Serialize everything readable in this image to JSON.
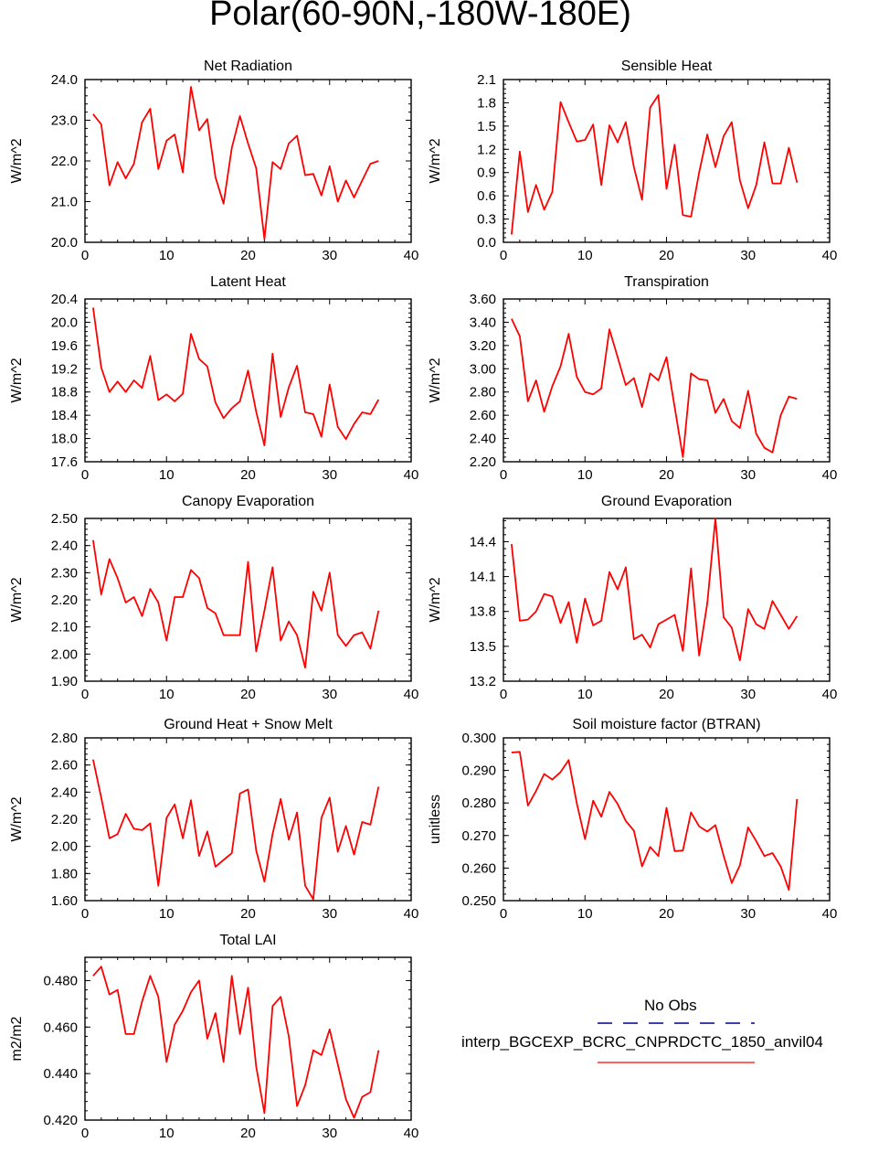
{
  "title": "Polar(60-90N,-180W-180E)",
  "colors": {
    "model_line": "#ff0000",
    "obs_line": "#00008b",
    "axis": "#000000"
  },
  "legend": {
    "obs_label": "No Obs",
    "model_label": "interp_BGCEXP_BCRC_CNPRDCTC_1850_anvil04"
  },
  "chart_data": [
    {
      "type": "line",
      "title": "Net Radiation",
      "ylabel": "W/m^2",
      "xlim": [
        0,
        40
      ],
      "ylim": [
        20.0,
        24.0
      ],
      "xticks": [
        0,
        10,
        20,
        30,
        40
      ],
      "yticks": [
        "20.0",
        "21.0",
        "22.0",
        "23.0",
        "24.0"
      ],
      "x": [
        1,
        2,
        3,
        4,
        5,
        6,
        7,
        8,
        9,
        10,
        11,
        12,
        13,
        14,
        15,
        16,
        17,
        18,
        19,
        20,
        21,
        22,
        23,
        24,
        25,
        26,
        27,
        28,
        29,
        30,
        31,
        32,
        33,
        34,
        35,
        36
      ],
      "series": [
        {
          "name": "interp_BGCEXP_BCRC_CNPRDCTC_1850_anvil04",
          "values": [
            23.15,
            22.9,
            21.4,
            21.97,
            21.57,
            21.93,
            22.95,
            23.28,
            21.8,
            22.5,
            22.65,
            21.72,
            23.82,
            22.75,
            23.03,
            21.6,
            20.95,
            22.32,
            23.1,
            22.43,
            21.82,
            20.08,
            21.97,
            21.8,
            22.43,
            22.62,
            21.65,
            21.68,
            21.15,
            21.87,
            21.0,
            21.52,
            21.1,
            21.52,
            21.93,
            22.0
          ]
        }
      ]
    },
    {
      "type": "line",
      "title": "Sensible Heat",
      "ylabel": "W/m^2",
      "xlim": [
        0,
        40
      ],
      "ylim": [
        0.0,
        2.1
      ],
      "xticks": [
        0,
        10,
        20,
        30,
        40
      ],
      "yticks": [
        "0.0",
        "0.3",
        "0.6",
        "0.9",
        "1.2",
        "1.5",
        "1.8",
        "2.1"
      ],
      "x": [
        1,
        2,
        3,
        4,
        5,
        6,
        7,
        8,
        9,
        10,
        11,
        12,
        13,
        14,
        15,
        16,
        17,
        18,
        19,
        20,
        21,
        22,
        23,
        24,
        25,
        26,
        27,
        28,
        29,
        30,
        31,
        32,
        33,
        34,
        35,
        36
      ],
      "series": [
        {
          "name": "interp_BGCEXP_BCRC_CNPRDCTC_1850_anvil04",
          "values": [
            0.1,
            1.17,
            0.39,
            0.74,
            0.42,
            0.65,
            1.81,
            1.55,
            1.3,
            1.32,
            1.52,
            0.74,
            1.51,
            1.29,
            1.55,
            0.97,
            0.55,
            1.74,
            1.9,
            0.69,
            1.26,
            0.35,
            0.33,
            0.9,
            1.39,
            0.97,
            1.37,
            1.55,
            0.8,
            0.44,
            0.74,
            1.29,
            0.76,
            0.76,
            1.22,
            0.77
          ]
        }
      ]
    },
    {
      "type": "line",
      "title": "Latent Heat",
      "ylabel": "W/m^2",
      "xlim": [
        0,
        40
      ],
      "ylim": [
        17.6,
        20.4
      ],
      "xticks": [
        0,
        10,
        20,
        30,
        40
      ],
      "yticks": [
        "17.6",
        "18.0",
        "18.4",
        "18.8",
        "19.2",
        "19.6",
        "20.0",
        "20.4"
      ],
      "x": [
        1,
        2,
        3,
        4,
        5,
        6,
        7,
        8,
        9,
        10,
        11,
        12,
        13,
        14,
        15,
        16,
        17,
        18,
        19,
        20,
        21,
        22,
        23,
        24,
        25,
        26,
        27,
        28,
        29,
        30,
        31,
        32,
        33,
        34,
        35,
        36
      ],
      "series": [
        {
          "name": "interp_BGCEXP_BCRC_CNPRDCTC_1850_anvil04",
          "values": [
            20.25,
            19.22,
            18.8,
            18.98,
            18.8,
            19.0,
            18.87,
            19.42,
            18.66,
            18.76,
            18.64,
            18.77,
            19.8,
            19.37,
            19.24,
            18.62,
            18.35,
            18.52,
            18.64,
            19.17,
            18.46,
            17.88,
            19.46,
            18.37,
            18.88,
            19.25,
            18.45,
            18.42,
            18.03,
            18.93,
            18.2,
            17.99,
            18.25,
            18.45,
            18.42,
            18.67
          ]
        }
      ]
    },
    {
      "type": "line",
      "title": "Transpiration",
      "ylabel": "W/m^2",
      "xlim": [
        0,
        40
      ],
      "ylim": [
        2.2,
        3.6
      ],
      "xticks": [
        0,
        10,
        20,
        30,
        40
      ],
      "yticks": [
        "2.20",
        "2.40",
        "2.60",
        "2.80",
        "3.00",
        "3.20",
        "3.40",
        "3.60"
      ],
      "x": [
        1,
        2,
        3,
        4,
        5,
        6,
        7,
        8,
        9,
        10,
        11,
        12,
        13,
        14,
        15,
        16,
        17,
        18,
        19,
        20,
        21,
        22,
        23,
        24,
        25,
        26,
        27,
        28,
        29,
        30,
        31,
        32,
        33,
        34,
        35,
        36
      ],
      "series": [
        {
          "name": "interp_BGCEXP_BCRC_CNPRDCTC_1850_anvil04",
          "values": [
            3.43,
            3.28,
            2.72,
            2.9,
            2.63,
            2.85,
            3.02,
            3.3,
            2.93,
            2.8,
            2.78,
            2.83,
            3.34,
            3.1,
            2.86,
            2.92,
            2.67,
            2.96,
            2.9,
            3.1,
            2.67,
            2.24,
            2.96,
            2.91,
            2.9,
            2.62,
            2.74,
            2.55,
            2.49,
            2.81,
            2.44,
            2.32,
            2.28,
            2.6,
            2.76,
            2.74
          ]
        }
      ]
    },
    {
      "type": "line",
      "title": "Canopy Evaporation",
      "ylabel": "W/m^2",
      "xlim": [
        0,
        40
      ],
      "ylim": [
        1.9,
        2.5
      ],
      "xticks": [
        0,
        10,
        20,
        30,
        40
      ],
      "yticks": [
        "1.90",
        "2.00",
        "2.10",
        "2.20",
        "2.30",
        "2.40",
        "2.50"
      ],
      "x": [
        1,
        2,
        3,
        4,
        5,
        6,
        7,
        8,
        9,
        10,
        11,
        12,
        13,
        14,
        15,
        16,
        17,
        18,
        19,
        20,
        21,
        22,
        23,
        24,
        25,
        26,
        27,
        28,
        29,
        30,
        31,
        32,
        33,
        34,
        35,
        36
      ],
      "series": [
        {
          "name": "interp_BGCEXP_BCRC_CNPRDCTC_1850_anvil04",
          "values": [
            2.42,
            2.22,
            2.35,
            2.28,
            2.19,
            2.21,
            2.14,
            2.24,
            2.19,
            2.05,
            2.21,
            2.21,
            2.31,
            2.28,
            2.17,
            2.15,
            2.07,
            2.07,
            2.07,
            2.34,
            2.01,
            2.16,
            2.32,
            2.05,
            2.12,
            2.07,
            1.95,
            2.23,
            2.16,
            2.3,
            2.07,
            2.03,
            2.07,
            2.08,
            2.02,
            2.16
          ]
        }
      ]
    },
    {
      "type": "line",
      "title": "Ground Evaporation",
      "ylabel": "W/m^2",
      "xlim": [
        0,
        40
      ],
      "ylim": [
        13.2,
        14.6
      ],
      "xticks": [
        0,
        10,
        20,
        30,
        40
      ],
      "yticks": [
        "13.2",
        "13.5",
        "13.8",
        "14.1",
        "14.4"
      ],
      "x": [
        1,
        2,
        3,
        4,
        5,
        6,
        7,
        8,
        9,
        10,
        11,
        12,
        13,
        14,
        15,
        16,
        17,
        18,
        19,
        20,
        21,
        22,
        23,
        24,
        25,
        26,
        27,
        28,
        29,
        30,
        31,
        32,
        33,
        34,
        35,
        36
      ],
      "series": [
        {
          "name": "interp_BGCEXP_BCRC_CNPRDCTC_1850_anvil04",
          "values": [
            14.38,
            13.72,
            13.73,
            13.8,
            13.95,
            13.93,
            13.7,
            13.88,
            13.53,
            13.91,
            13.68,
            13.72,
            14.14,
            13.99,
            14.18,
            13.56,
            13.6,
            13.49,
            13.69,
            13.73,
            13.77,
            13.46,
            14.17,
            13.42,
            13.87,
            14.6,
            13.75,
            13.66,
            13.38,
            13.82,
            13.69,
            13.65,
            13.89,
            13.77,
            13.65,
            13.76
          ]
        }
      ]
    },
    {
      "type": "line",
      "title": "Ground Heat + Snow Melt",
      "ylabel": "W/m^2",
      "xlim": [
        0,
        40
      ],
      "ylim": [
        1.6,
        2.8
      ],
      "xticks": [
        0,
        10,
        20,
        30,
        40
      ],
      "yticks": [
        "1.60",
        "1.80",
        "2.00",
        "2.20",
        "2.40",
        "2.60",
        "2.80"
      ],
      "x": [
        1,
        2,
        3,
        4,
        5,
        6,
        7,
        8,
        9,
        10,
        11,
        12,
        13,
        14,
        15,
        16,
        17,
        18,
        19,
        20,
        21,
        22,
        23,
        24,
        25,
        26,
        27,
        28,
        29,
        30,
        31,
        32,
        33,
        34,
        35,
        36
      ],
      "series": [
        {
          "name": "interp_BGCEXP_BCRC_CNPRDCTC_1850_anvil04",
          "values": [
            2.64,
            2.36,
            2.06,
            2.09,
            2.24,
            2.13,
            2.12,
            2.17,
            1.71,
            2.21,
            2.31,
            2.06,
            2.34,
            1.93,
            2.11,
            1.85,
            1.9,
            1.95,
            2.39,
            2.42,
            1.97,
            1.74,
            2.09,
            2.35,
            2.05,
            2.25,
            1.71,
            1.61,
            2.21,
            2.36,
            1.96,
            2.15,
            1.94,
            2.18,
            2.16,
            2.44
          ]
        }
      ]
    },
    {
      "type": "line",
      "title": "Soil moisture factor (BTRAN)",
      "ylabel": "unitless",
      "xlim": [
        0,
        40
      ],
      "ylim": [
        0.25,
        0.3
      ],
      "xticks": [
        0,
        10,
        20,
        30,
        40
      ],
      "yticks": [
        "0.250",
        "0.260",
        "0.270",
        "0.280",
        "0.290",
        "0.300"
      ],
      "x": [
        1,
        2,
        3,
        4,
        5,
        6,
        7,
        8,
        9,
        10,
        11,
        12,
        13,
        14,
        15,
        16,
        17,
        18,
        19,
        20,
        21,
        22,
        23,
        24,
        25,
        26,
        27,
        28,
        29,
        30,
        31,
        32,
        33,
        34,
        35,
        36
      ],
      "series": [
        {
          "name": "interp_BGCEXP_BCRC_CNPRDCTC_1850_anvil04",
          "values": [
            0.2955,
            0.2957,
            0.2792,
            0.2837,
            0.2889,
            0.2872,
            0.2895,
            0.2932,
            0.2799,
            0.2689,
            0.2807,
            0.2758,
            0.2834,
            0.2797,
            0.2745,
            0.2715,
            0.2605,
            0.2665,
            0.2637,
            0.2785,
            0.2652,
            0.2654,
            0.2771,
            0.2728,
            0.2712,
            0.2732,
            0.2638,
            0.2554,
            0.2609,
            0.2725,
            0.2683,
            0.2637,
            0.2646,
            0.2605,
            0.2533,
            0.2812
          ]
        }
      ]
    },
    {
      "type": "line",
      "title": "Total LAI",
      "ylabel": "m2/m2",
      "xlim": [
        0,
        40
      ],
      "ylim": [
        0.42,
        0.49
      ],
      "xticks": [
        0,
        10,
        20,
        30,
        40
      ],
      "yticks": [
        "0.420",
        "0.440",
        "0.460",
        "0.480"
      ],
      "x": [
        1,
        2,
        3,
        4,
        5,
        6,
        7,
        8,
        9,
        10,
        11,
        12,
        13,
        14,
        15,
        16,
        17,
        18,
        19,
        20,
        21,
        22,
        23,
        24,
        25,
        26,
        27,
        28,
        29,
        30,
        31,
        32,
        33,
        34,
        35,
        36
      ],
      "series": [
        {
          "name": "interp_BGCEXP_BCRC_CNPRDCTC_1850_anvil04",
          "values": [
            0.482,
            0.486,
            0.474,
            0.476,
            0.457,
            0.457,
            0.471,
            0.482,
            0.473,
            0.445,
            0.461,
            0.467,
            0.475,
            0.48,
            0.455,
            0.466,
            0.445,
            0.482,
            0.457,
            0.477,
            0.443,
            0.423,
            0.469,
            0.473,
            0.456,
            0.426,
            0.435,
            0.45,
            0.448,
            0.459,
            0.444,
            0.429,
            0.421,
            0.43,
            0.432,
            0.45
          ]
        }
      ]
    }
  ]
}
